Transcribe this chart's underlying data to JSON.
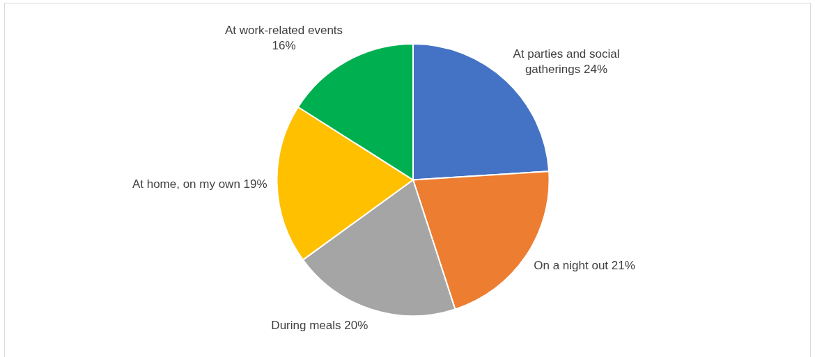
{
  "chart_data": {
    "type": "pie",
    "categories": [
      "At parties and social gatherings",
      "On a night out",
      "During meals",
      "At home, on my own",
      "At work-related events"
    ],
    "values": [
      24,
      21,
      20,
      19,
      16
    ],
    "value_labels": [
      "24%",
      "21%",
      "20%",
      "19%",
      "16%"
    ],
    "colors": [
      "#4472c4",
      "#ed7d31",
      "#a5a5a5",
      "#ffc000",
      "#00b050"
    ]
  }
}
